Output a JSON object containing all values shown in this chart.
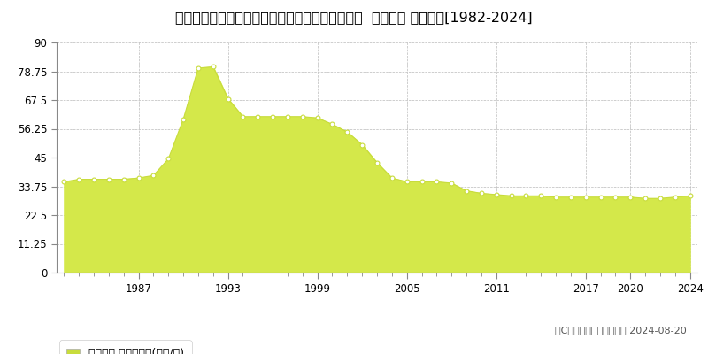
{
  "title": "兵庫県神戸市垂水区つつじが丘２丁目１１番１２  地価公示 地価推移[1982-2024]",
  "years": [
    1982,
    1983,
    1984,
    1985,
    1986,
    1987,
    1988,
    1989,
    1990,
    1991,
    1992,
    1993,
    1994,
    1995,
    1996,
    1997,
    1998,
    1999,
    2000,
    2001,
    2002,
    2003,
    2004,
    2005,
    2006,
    2007,
    2008,
    2009,
    2010,
    2011,
    2012,
    2013,
    2014,
    2015,
    2016,
    2017,
    2018,
    2019,
    2020,
    2021,
    2022,
    2023,
    2024
  ],
  "values": [
    35.5,
    36.5,
    36.5,
    36.5,
    36.5,
    37.0,
    38.0,
    44.5,
    60.0,
    80.0,
    80.5,
    68.0,
    61.0,
    61.0,
    61.0,
    61.0,
    61.0,
    60.5,
    58.0,
    55.0,
    50.0,
    43.0,
    37.0,
    35.5,
    35.5,
    35.5,
    35.0,
    32.0,
    31.0,
    30.5,
    30.0,
    30.0,
    30.0,
    29.5,
    29.5,
    29.5,
    29.5,
    29.5,
    29.5,
    29.0,
    29.0,
    29.5,
    30.0
  ],
  "fill_color": "#d4e84a",
  "line_color": "#c8dc3c",
  "marker_color": "#ffffff",
  "marker_edge_color": "#c8dc3c",
  "ylim": [
    0,
    90
  ],
  "yticks": [
    0,
    11.25,
    22.5,
    33.75,
    45,
    56.25,
    67.5,
    78.75,
    90
  ],
  "ytick_labels": [
    "0",
    "11.25",
    "22.5",
    "33.75",
    "45",
    "56.25",
    "67.5",
    "78.75",
    "90"
  ],
  "xlim": [
    1981.5,
    2024.5
  ],
  "xticks": [
    1987,
    1993,
    1999,
    2005,
    2011,
    2017,
    2020,
    2024
  ],
  "xtick_labels": [
    "1987",
    "1993",
    "1999",
    "2005",
    "2011",
    "2017",
    "2020",
    "2024"
  ],
  "bg_color": "#ffffff",
  "plot_bg_color": "#ffffff",
  "grid_color": "#bbbbbb",
  "legend_label": "地価公示 平均坪単価(万円/坪)",
  "legend_sq_color": "#c8dc3c",
  "copyright_text": "（C）土地価格ドットコム 2024-08-20",
  "title_fontsize": 11.5,
  "tick_fontsize": 8.5,
  "legend_fontsize": 9,
  "copyright_fontsize": 8
}
